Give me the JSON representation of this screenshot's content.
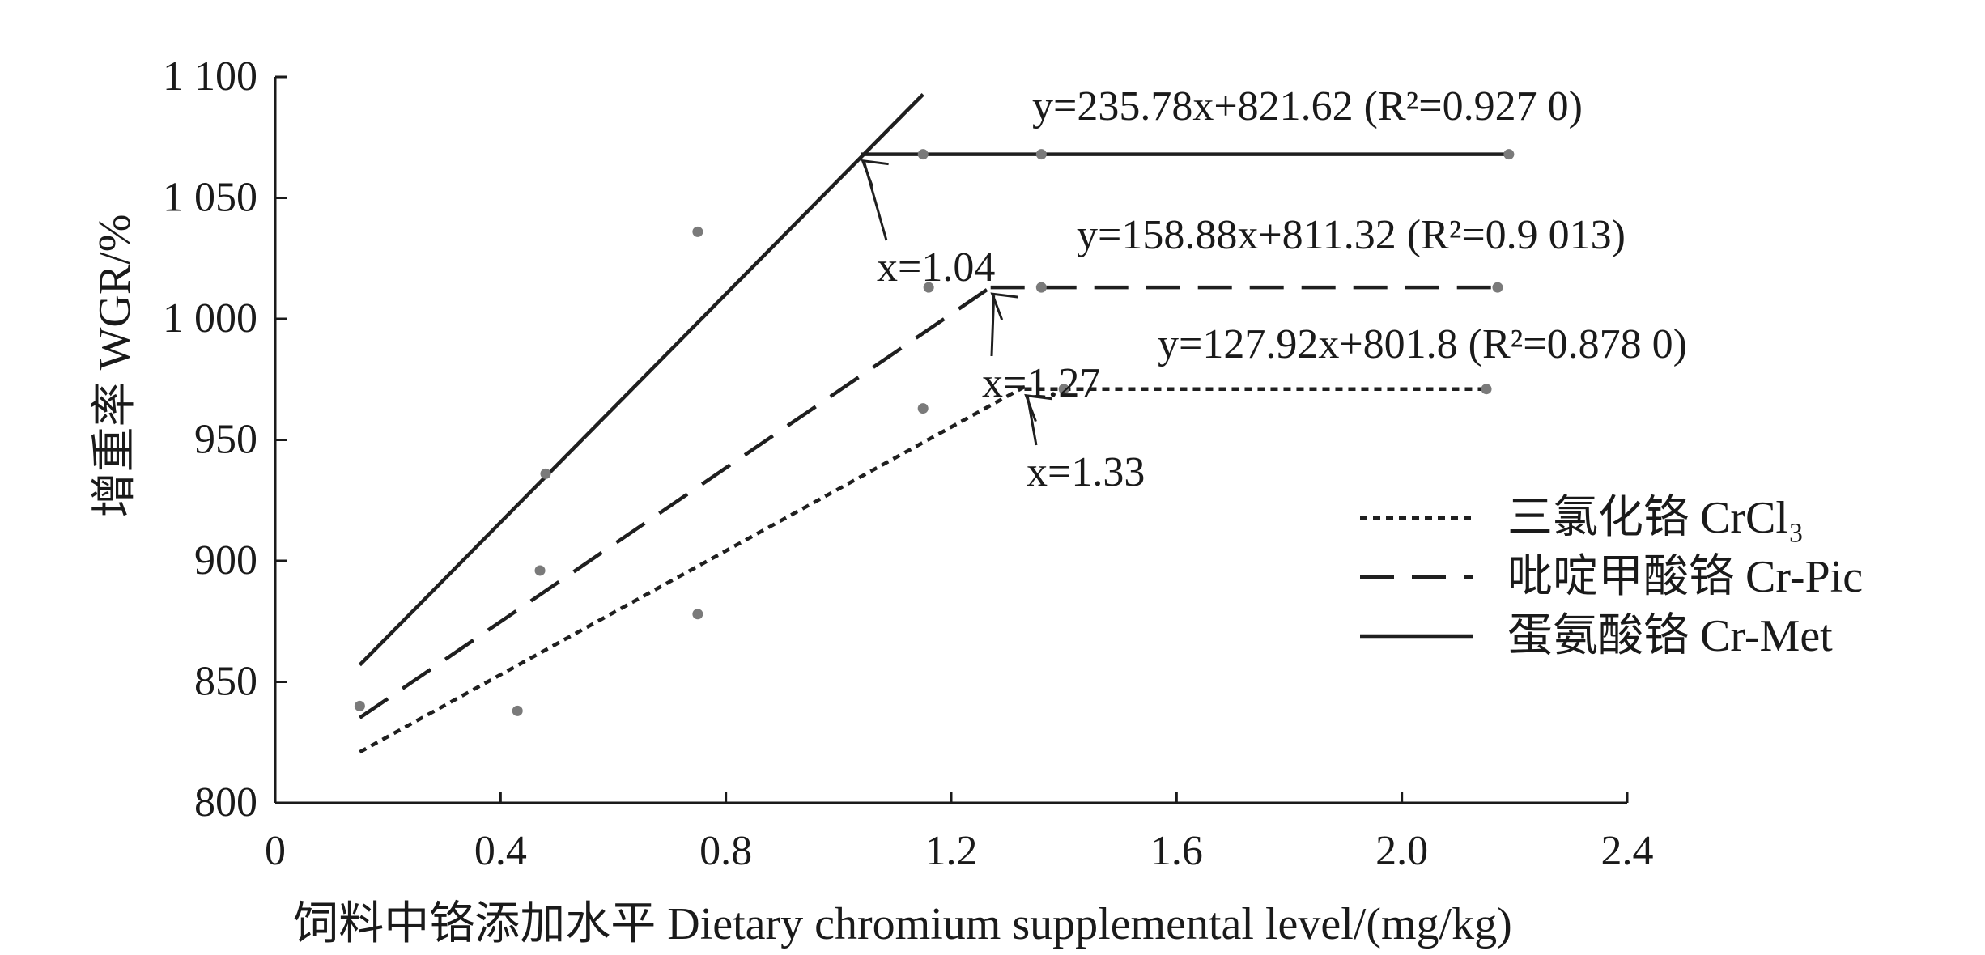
{
  "chart_data": {
    "type": "line",
    "ylabel": "增重率  WGR/%",
    "xlabel": "饲料中铬添加水平  Dietary chromium supplemental level/(mg/kg)",
    "xlim": [
      0,
      2.4
    ],
    "ylim": [
      800,
      1100
    ],
    "x_ticks": [
      0,
      0.4,
      0.8,
      1.2,
      1.6,
      2.0,
      2.4
    ],
    "x_tick_labels": [
      "0",
      "0.4",
      "0.8",
      "1.2",
      "1.6",
      "2.0",
      "2.4"
    ],
    "y_ticks": [
      800,
      850,
      900,
      950,
      1000,
      1050,
      1100
    ],
    "y_tick_labels": [
      "800",
      "850",
      "900",
      "950",
      "1 000",
      "1 050",
      "1 100"
    ],
    "grid": false,
    "legend_position": "center-right",
    "series": [
      {
        "name": "三氯化铬  CrCl₃",
        "style": "dotted",
        "points": [
          {
            "x": 0.43,
            "y": 838
          },
          {
            "x": 0.75,
            "y": 878
          },
          {
            "x": 1.15,
            "y": 963
          },
          {
            "x": 1.4,
            "y": 971
          },
          {
            "x": 2.15,
            "y": 971
          }
        ],
        "fit": {
          "equation": "y=127.92x+801.8 (R²=0.878 0)",
          "slope": 127.92,
          "intercept": 801.8,
          "breakpoint": 1.33,
          "breakpoint_label": "x=1.33",
          "plateau": 971,
          "x_start": 0.15,
          "x_end": 2.15
        }
      },
      {
        "name": "吡啶甲酸铬  Cr-Pic",
        "style": "dashed",
        "points": [
          {
            "x": 0.15,
            "y": 840
          },
          {
            "x": 0.47,
            "y": 896
          },
          {
            "x": 1.16,
            "y": 1013
          },
          {
            "x": 1.36,
            "y": 1013
          },
          {
            "x": 2.17,
            "y": 1013
          }
        ],
        "fit": {
          "equation": "y=158.88x+811.32 (R²=0.9 013)",
          "slope": 158.88,
          "intercept": 811.32,
          "breakpoint": 1.27,
          "breakpoint_label": "x=1.27",
          "plateau": 1013,
          "x_start": 0.15,
          "x_end": 2.17
        }
      },
      {
        "name": "蛋氨酸铬  Cr-Met",
        "style": "solid",
        "points": [
          {
            "x": 0.48,
            "y": 936
          },
          {
            "x": 0.75,
            "y": 1036
          },
          {
            "x": 1.15,
            "y": 1068
          },
          {
            "x": 1.36,
            "y": 1068
          },
          {
            "x": 2.19,
            "y": 1068
          }
        ],
        "fit": {
          "equation": "y=235.78x+821.62 (R²=0.927 0)",
          "slope": 235.78,
          "intercept": 821.62,
          "breakpoint": 1.04,
          "breakpoint_label": "x=1.04",
          "plateau": 1068,
          "x_start": 0.15,
          "x_end": 2.19,
          "rising_line_end_x": 1.15
        }
      }
    ]
  }
}
